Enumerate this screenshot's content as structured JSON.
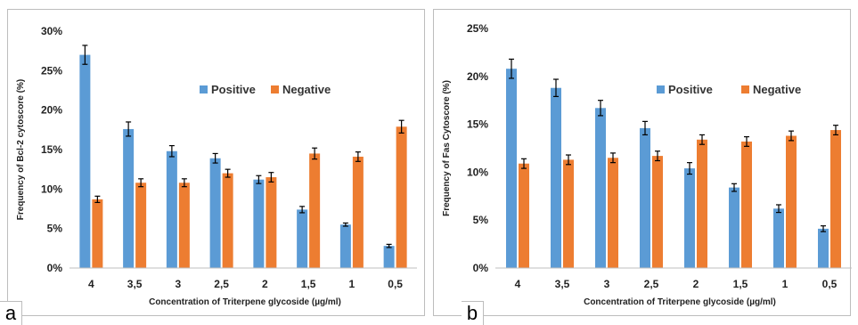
{
  "chart_data": [
    {
      "type": "bar",
      "panel_label": "a",
      "categories": [
        "4",
        "3,5",
        "3",
        "2,5",
        "2",
        "1,5",
        "1",
        "0,5"
      ],
      "series": [
        {
          "name": "Positive",
          "color": "#5b9bd5",
          "values": [
            27.0,
            17.6,
            14.8,
            13.9,
            11.2,
            7.4,
            5.5,
            2.8
          ],
          "errors": [
            1.2,
            0.9,
            0.7,
            0.6,
            0.5,
            0.4,
            0.2,
            0.2
          ]
        },
        {
          "name": "Negative",
          "color": "#ed7d31",
          "values": [
            8.7,
            10.8,
            10.8,
            12.0,
            11.5,
            14.5,
            14.1,
            17.9
          ],
          "errors": [
            0.4,
            0.5,
            0.5,
            0.5,
            0.6,
            0.7,
            0.6,
            0.8
          ]
        }
      ],
      "xlabel": "Concentration of Triterpene glycoside (µg/ml)",
      "ylabel": "Frequency of Bcl-2 cytoscore (%)",
      "ylim": [
        0,
        30
      ],
      "yticks": [
        0,
        5,
        10,
        15,
        20,
        25,
        30
      ],
      "ytick_labels": [
        "0%",
        "5%",
        "10%",
        "15%",
        "20%",
        "25%",
        "30%"
      ],
      "grid": false,
      "legend": "top-right"
    },
    {
      "type": "bar",
      "panel_label": "b",
      "categories": [
        "4",
        "3,5",
        "3",
        "2,5",
        "2",
        "1,5",
        "1",
        "0,5"
      ],
      "series": [
        {
          "name": "Positive",
          "color": "#5b9bd5",
          "values": [
            20.8,
            18.8,
            16.7,
            14.6,
            10.4,
            8.4,
            6.2,
            4.1
          ],
          "errors": [
            1.0,
            0.9,
            0.8,
            0.7,
            0.6,
            0.4,
            0.4,
            0.3
          ]
        },
        {
          "name": "Negative",
          "color": "#ed7d31",
          "values": [
            10.9,
            11.3,
            11.5,
            11.7,
            13.4,
            13.2,
            13.8,
            14.4
          ],
          "errors": [
            0.5,
            0.5,
            0.5,
            0.5,
            0.5,
            0.5,
            0.5,
            0.5
          ]
        }
      ],
      "xlabel": "Concentration of Triterpene glycoside (µg/ml)",
      "ylabel": "Frequency of Fas Cytoscore (%)",
      "ylim": [
        0,
        25
      ],
      "yticks": [
        0,
        5,
        10,
        15,
        20,
        25
      ],
      "ytick_labels": [
        "0%",
        "5%",
        "10%",
        "15%",
        "20%",
        "25%"
      ],
      "grid": false,
      "legend": "top-right"
    }
  ]
}
